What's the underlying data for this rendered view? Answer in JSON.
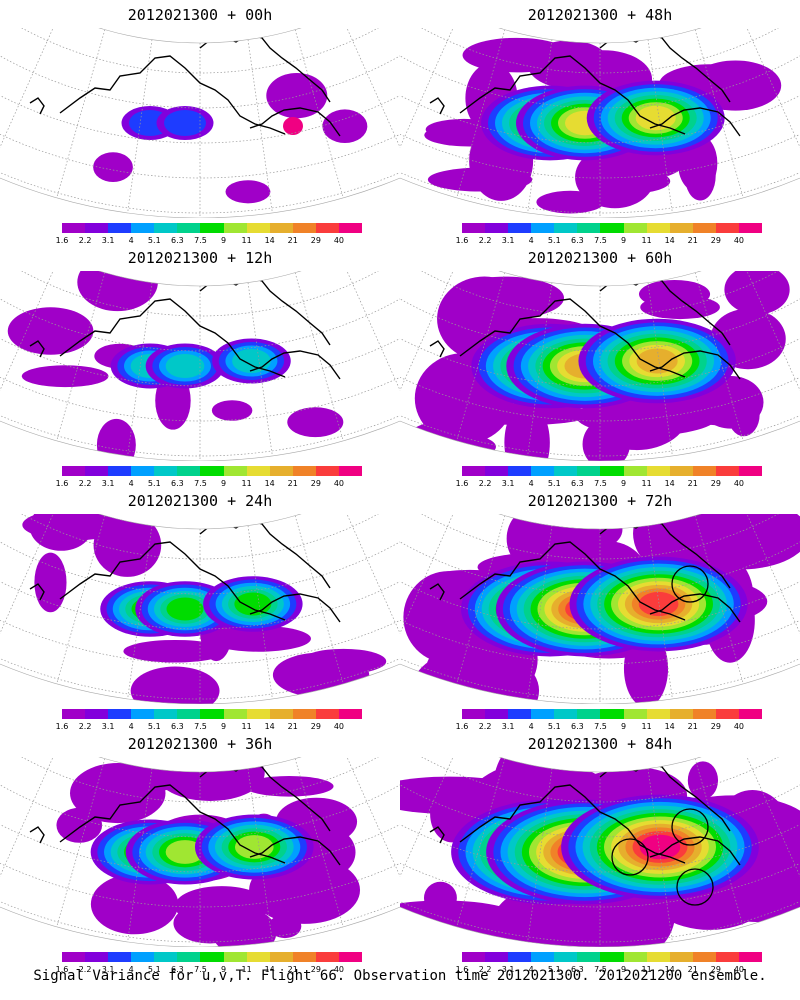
{
  "caption": "Signal Variance for u,v,T. Flight 66. Observation time 2012021300. 2012021200 ensemble.",
  "colorbar": {
    "colors": [
      "#a000c8",
      "#8200dc",
      "#1e3cff",
      "#00a0ff",
      "#00c8c8",
      "#00d28c",
      "#00dc00",
      "#a0e632",
      "#e6dc32",
      "#e6af2d",
      "#f08228",
      "#fa3c3c",
      "#f00082"
    ],
    "labels": [
      "1.6",
      "2.2",
      "3.1",
      "4",
      "5.1",
      "6.3",
      "7.5",
      "9",
      "11",
      "14",
      "21",
      "29",
      "40"
    ]
  },
  "panels": [
    {
      "title": "2012021300 + 00h",
      "lead": 0,
      "circles": 0
    },
    {
      "title": "2012021300 + 48h",
      "lead": 48,
      "circles": 0
    },
    {
      "title": "2012021300 + 12h",
      "lead": 12,
      "circles": 0
    },
    {
      "title": "2012021300 + 60h",
      "lead": 60,
      "circles": 0
    },
    {
      "title": "2012021300 + 24h",
      "lead": 24,
      "circles": 0
    },
    {
      "title": "2012021300 + 72h",
      "lead": 72,
      "circles": 1
    },
    {
      "title": "2012021300 + 36h",
      "lead": 36,
      "circles": 0
    },
    {
      "title": "2012021300 + 84h",
      "lead": 84,
      "circles": 3
    }
  ]
}
